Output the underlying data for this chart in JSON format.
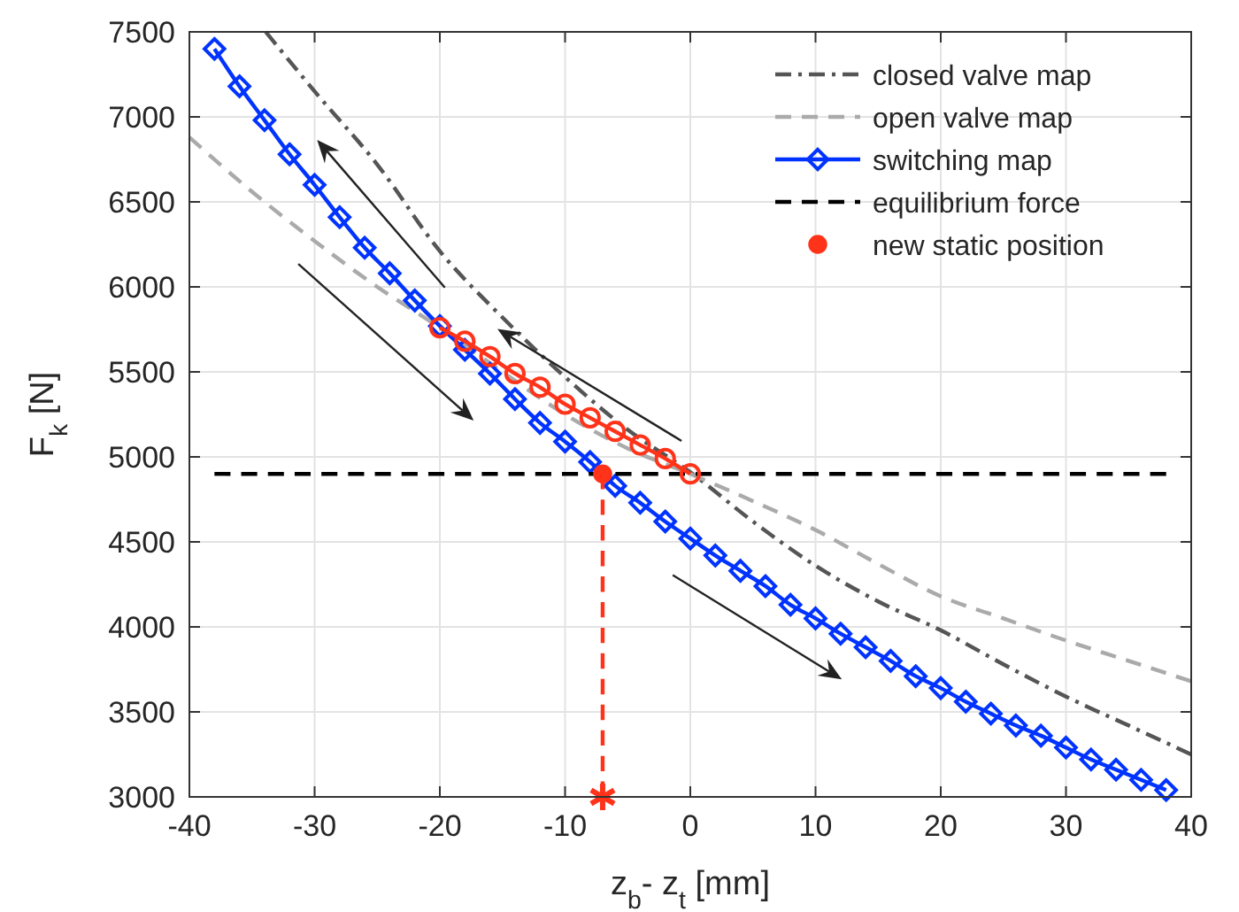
{
  "chart_data": {
    "type": "line",
    "xlabel": "z$_{b}$- z$_{t}$ [mm]",
    "ylabel": "F$_{k}$ [N]",
    "xlim": [
      -40,
      40
    ],
    "xticks": [
      -40,
      -30,
      -20,
      -10,
      0,
      10,
      20,
      30,
      40
    ],
    "ylim": [
      3000,
      7500
    ],
    "yticks": [
      3000,
      3500,
      4000,
      4500,
      5000,
      5500,
      6000,
      6500,
      7000,
      7500
    ],
    "grid": true,
    "legend": "top right",
    "series": [
      {
        "name": "closed valve map",
        "color": "#555555",
        "line_style": "dashdot",
        "marker": "none",
        "x": [
          -33.9,
          -30,
          -25,
          -20,
          -15,
          -10,
          -5,
          0,
          5,
          10,
          15,
          20,
          25,
          30,
          35,
          40
        ],
        "values": [
          7500,
          7150,
          6720,
          6210,
          5820,
          5470,
          5160,
          4910,
          4620,
          4360,
          4150,
          3980,
          3780,
          3590,
          3420,
          3250
        ]
      },
      {
        "name": "open valve map",
        "color": "#aaaaaa",
        "line_style": "dashed",
        "marker": "none",
        "x": [
          -40,
          -35,
          -30,
          -25,
          -20,
          -15,
          -10,
          -5,
          0,
          5,
          10,
          15,
          20,
          25,
          30,
          35,
          40
        ],
        "values": [
          6880,
          6560,
          6270,
          6000,
          5760,
          5500,
          5250,
          5050,
          4900,
          4740,
          4570,
          4370,
          4180,
          4050,
          3920,
          3800,
          3680
        ]
      },
      {
        "name": "switching map",
        "color": "#0033ff",
        "line_style": "solid",
        "marker": "diamond",
        "x": [
          -38,
          -36,
          -34,
          -32,
          -30,
          -28,
          -26,
          -24,
          -22,
          -20,
          -18,
          -16,
          -14,
          -12,
          -10,
          -8,
          -6,
          -4,
          -2,
          0,
          2,
          4,
          6,
          8,
          10,
          12,
          14,
          16,
          18,
          20,
          22,
          24,
          26,
          28,
          30,
          32,
          34,
          36,
          38
        ],
        "values": [
          7400,
          7180,
          6980,
          6780,
          6600,
          6410,
          6230,
          6080,
          5920,
          5770,
          5630,
          5490,
          5340,
          5200,
          5090,
          4970,
          4830,
          4730,
          4620,
          4520,
          4420,
          4330,
          4240,
          4130,
          4050,
          3960,
          3880,
          3800,
          3710,
          3640,
          3560,
          3490,
          3420,
          3360,
          3290,
          3220,
          3160,
          3100,
          3040
        ]
      },
      {
        "name": "equilibrium force",
        "color": "#000000",
        "line_style": "dashed",
        "marker": "none",
        "x": [
          -38,
          38
        ],
        "values": [
          4900,
          4900
        ]
      },
      {
        "name": "new static position",
        "type": "scatter",
        "color": "#ff3319",
        "marker": "circle",
        "x": [
          -7
        ],
        "values": [
          4900
        ]
      },
      {
        "color": "#ff3319",
        "line_style": "solid",
        "marker": "circle",
        "x": [
          -20,
          -18,
          -16,
          -14,
          -12,
          -10,
          -8,
          -6,
          -4,
          -2,
          0
        ],
        "values": [
          5760,
          5680,
          5590,
          5490,
          5410,
          5310,
          5230,
          5150,
          5070,
          4990,
          4900
        ]
      },
      {
        "color": "#ff3319",
        "line_style": "dashed",
        "marker": "none",
        "x": [
          -7,
          -7
        ],
        "values": [
          4900,
          3000
        ]
      },
      {
        "type": "scatter",
        "color": "#ff3319",
        "marker": "cross",
        "x": [
          -7
        ],
        "values": [
          3000
        ]
      }
    ]
  }
}
